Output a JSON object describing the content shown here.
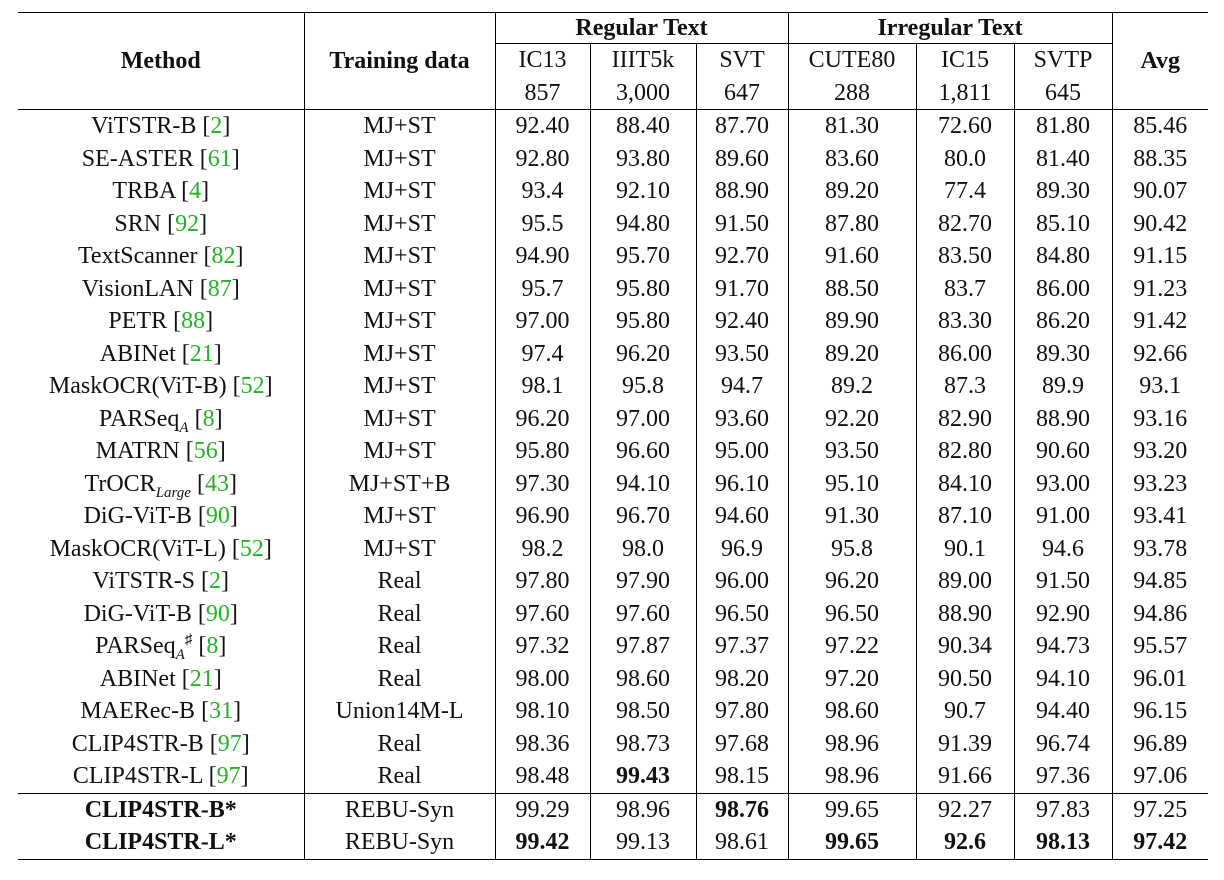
{
  "header": {
    "method": "Method",
    "training_data": "Training data",
    "regular_group": "Regular Text",
    "irregular_group": "Irregular Text",
    "avg": "Avg",
    "columns": [
      {
        "name": "IC13",
        "count": "857"
      },
      {
        "name": "IIIT5k",
        "count": "3,000"
      },
      {
        "name": "SVT",
        "count": "647"
      },
      {
        "name": "CUTE80",
        "count": "288"
      },
      {
        "name": "IC15",
        "count": "1,811"
      },
      {
        "name": "SVTP",
        "count": "645"
      }
    ]
  },
  "rows": [
    {
      "method": "ViTSTR-B",
      "sub": "",
      "sup": "",
      "ref": "2",
      "data": "MJ+ST",
      "v": [
        "92.40",
        "88.40",
        "87.70",
        "81.30",
        "72.60",
        "81.80",
        "85.46"
      ],
      "bold": []
    },
    {
      "method": "SE-ASTER",
      "sub": "",
      "sup": "",
      "ref": "61",
      "data": "MJ+ST",
      "v": [
        "92.80",
        "93.80",
        "89.60",
        "83.60",
        "80.0",
        "81.40",
        "88.35"
      ],
      "bold": []
    },
    {
      "method": "TRBA",
      "sub": "",
      "sup": "",
      "ref": "4",
      "data": "MJ+ST",
      "v": [
        "93.4",
        "92.10",
        "88.90",
        "89.20",
        "77.4",
        "89.30",
        "90.07"
      ],
      "bold": []
    },
    {
      "method": "SRN",
      "sub": "",
      "sup": "",
      "ref": "92",
      "data": "MJ+ST",
      "v": [
        "95.5",
        "94.80",
        "91.50",
        "87.80",
        "82.70",
        "85.10",
        "90.42"
      ],
      "bold": []
    },
    {
      "method": "TextScanner",
      "sub": "",
      "sup": "",
      "ref": "82",
      "data": "MJ+ST",
      "v": [
        "94.90",
        "95.70",
        "92.70",
        "91.60",
        "83.50",
        "84.80",
        "91.15"
      ],
      "bold": []
    },
    {
      "method": "VisionLAN",
      "sub": "",
      "sup": "",
      "ref": "87",
      "data": "MJ+ST",
      "v": [
        "95.7",
        "95.80",
        "91.70",
        "88.50",
        "83.7",
        "86.00",
        "91.23"
      ],
      "bold": []
    },
    {
      "method": "PETR",
      "sub": "",
      "sup": "",
      "ref": "88",
      "data": "MJ+ST",
      "v": [
        "97.00",
        "95.80",
        "92.40",
        "89.90",
        "83.30",
        "86.20",
        "91.42"
      ],
      "bold": []
    },
    {
      "method": "ABINet",
      "sub": "",
      "sup": "",
      "ref": "21",
      "data": "MJ+ST",
      "v": [
        "97.4",
        "96.20",
        "93.50",
        "89.20",
        "86.00",
        "89.30",
        "92.66"
      ],
      "bold": []
    },
    {
      "method": "MaskOCR(ViT-B)",
      "sub": "",
      "sup": "",
      "ref": "52",
      "data": "MJ+ST",
      "v": [
        "98.1",
        "95.8",
        "94.7",
        "89.2",
        "87.3",
        "89.9",
        "93.1"
      ],
      "bold": []
    },
    {
      "method": "PARSeq",
      "sub": "A",
      "sup": "",
      "ref": "8",
      "data": "MJ+ST",
      "v": [
        "96.20",
        "97.00",
        "93.60",
        "92.20",
        "82.90",
        "88.90",
        "93.16"
      ],
      "bold": []
    },
    {
      "method": "MATRN",
      "sub": "",
      "sup": "",
      "ref": "56",
      "data": "MJ+ST",
      "v": [
        "95.80",
        "96.60",
        "95.00",
        "93.50",
        "82.80",
        "90.60",
        "93.20"
      ],
      "bold": []
    },
    {
      "method": "TrOCR",
      "sub": "Large",
      "sup": "",
      "ref": "43",
      "data": "MJ+ST+B",
      "v": [
        "97.30",
        "94.10",
        "96.10",
        "95.10",
        "84.10",
        "93.00",
        "93.23"
      ],
      "bold": []
    },
    {
      "method": "DiG-ViT-B",
      "sub": "",
      "sup": "",
      "ref": "90",
      "data": "MJ+ST",
      "v": [
        "96.90",
        "96.70",
        "94.60",
        "91.30",
        "87.10",
        "91.00",
        "93.41"
      ],
      "bold": []
    },
    {
      "method": "MaskOCR(ViT-L)",
      "sub": "",
      "sup": "",
      "ref": "52",
      "data": "MJ+ST",
      "v": [
        "98.2",
        "98.0",
        "96.9",
        "95.8",
        "90.1",
        "94.6",
        "93.78"
      ],
      "bold": []
    },
    {
      "method": "ViTSTR-S",
      "sub": "",
      "sup": "",
      "ref": "2",
      "data": "Real",
      "v": [
        "97.80",
        "97.90",
        "96.00",
        "96.20",
        "89.00",
        "91.50",
        "94.85"
      ],
      "bold": []
    },
    {
      "method": "DiG-ViT-B",
      "sub": "",
      "sup": "",
      "ref": "90",
      "data": "Real",
      "v": [
        "97.60",
        "97.60",
        "96.50",
        "96.50",
        "88.90",
        "92.90",
        "94.86"
      ],
      "bold": []
    },
    {
      "method": "PARSeq",
      "sub": "A",
      "sup": "♯",
      "ref": "8",
      "data": "Real",
      "v": [
        "97.32",
        "97.87",
        "97.37",
        "97.22",
        "90.34",
        "94.73",
        "95.57"
      ],
      "bold": []
    },
    {
      "method": "ABINet",
      "sub": "",
      "sup": "",
      "ref": "21",
      "data": "Real",
      "v": [
        "98.00",
        "98.60",
        "98.20",
        "97.20",
        "90.50",
        "94.10",
        "96.01"
      ],
      "bold": []
    },
    {
      "method": "MAERec-B",
      "sub": "",
      "sup": "",
      "ref": "31",
      "data": "Union14M-L",
      "v": [
        "98.10",
        "98.50",
        "97.80",
        "98.60",
        "90.7",
        "94.40",
        "96.15"
      ],
      "bold": []
    },
    {
      "method": "CLIP4STR-B",
      "sub": "",
      "sup": "",
      "ref": "97",
      "data": "Real",
      "v": [
        "98.36",
        "98.73",
        "97.68",
        "98.96",
        "91.39",
        "96.74",
        "96.89"
      ],
      "bold": []
    },
    {
      "method": "CLIP4STR-L",
      "sub": "",
      "sup": "",
      "ref": "97",
      "data": "Real",
      "v": [
        "98.48",
        "99.43",
        "98.15",
        "98.96",
        "91.66",
        "97.36",
        "97.06"
      ],
      "bold": [
        1
      ]
    },
    {
      "method": "CLIP4STR-B*",
      "sub": "",
      "sup": "",
      "ref": "",
      "data": "REBU-Syn",
      "v": [
        "99.29",
        "98.96",
        "98.76",
        "99.65",
        "92.27",
        "97.83",
        "97.25"
      ],
      "bold": [
        2
      ],
      "method_bold": true,
      "sep": true
    },
    {
      "method": "CLIP4STR-L*",
      "sub": "",
      "sup": "",
      "ref": "",
      "data": "REBU-Syn",
      "v": [
        "99.42",
        "99.13",
        "98.61",
        "99.65",
        "92.6",
        "98.13",
        "97.42"
      ],
      "bold": [
        0,
        3,
        4,
        5,
        6
      ],
      "method_bold": true
    }
  ]
}
